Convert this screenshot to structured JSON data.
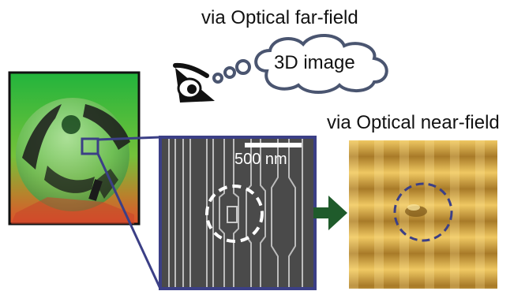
{
  "far_field_label": "via Optical far-field",
  "thought_bubble_text": "3D image",
  "near_field_label": "via Optical near-field",
  "scale_bar_label": "500 nm",
  "colors": {
    "frame_blue": "#3b3f86",
    "arrow_green": "#1f5b2b",
    "dashed_near_field": "#3b3f86",
    "cloud_stroke": "#4a5570",
    "sem_background": "#4a4a4a",
    "near_field_gold": "#d8a336"
  },
  "icons": [
    "eye-icon",
    "thought-cloud-icon",
    "arrow-right-icon"
  ]
}
